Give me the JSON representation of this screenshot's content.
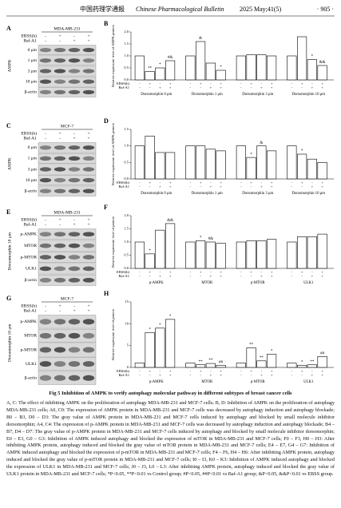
{
  "header": {
    "journal_cn": "中国药理学通报",
    "journal_en": "Chinese Pharmacological Bulletin",
    "issue": "2025 May;41(5)",
    "page": "· 905 ·"
  },
  "blots": [
    {
      "letter": "A",
      "cell_line": "MDA-MB-231",
      "conditions": [
        {
          "label": "EBSS(h)",
          "signs": [
            "-",
            "+",
            "-",
            "+"
          ]
        },
        {
          "label": "Baf-A1",
          "signs": [
            "-",
            "-",
            "+",
            "+"
          ]
        }
      ],
      "side_label": "AMPK",
      "bands": [
        "0 μm",
        "1 μm",
        "3 μm",
        "10 μm",
        "β-actin"
      ]
    },
    {
      "letter": "C",
      "cell_line": "MCF-7",
      "conditions": [
        {
          "label": "EBSS(h)",
          "signs": [
            "-",
            "+",
            "-",
            "+"
          ]
        },
        {
          "label": "Baf-A1",
          "signs": [
            "-",
            "-",
            "+",
            "+"
          ]
        }
      ],
      "side_label": "AMPK",
      "bands": [
        "0 μm",
        "1 μm",
        "3 μm",
        "10 μm",
        "β-actin"
      ]
    },
    {
      "letter": "E",
      "cell_line": "MDA-MB-231",
      "conditions": [
        {
          "label": "EBSS(h)",
          "signs": [
            "-",
            "+",
            "-",
            "+"
          ]
        },
        {
          "label": "Baf-A1",
          "signs": [
            "-",
            "-",
            "+",
            "+"
          ]
        }
      ],
      "side_label": "Dorsomorphin 10 μm",
      "bands": [
        "p-AMPK",
        "MTOR",
        "p-MTOR",
        "ULK1",
        "β-actin"
      ]
    },
    {
      "letter": "G",
      "cell_line": "MCF-7",
      "conditions": [
        {
          "label": "EBSS(h)",
          "signs": [
            "-",
            "+",
            "-",
            "+"
          ]
        },
        {
          "label": "Baf-A1",
          "signs": [
            "-",
            "-",
            "+",
            "+"
          ]
        }
      ],
      "side_label": "Dorsomorphin 10 μm",
      "bands": [
        "p-AMPK",
        "MTOR",
        "p-MTOR",
        "ULK1",
        "β-actin"
      ]
    }
  ],
  "charts": [
    {
      "type": "bar",
      "letter": "B",
      "ylabel": "Relative expression level of AMPK protein",
      "ylim": [
        0,
        2
      ],
      "yticks": [
        {
          "value": 0,
          "label": "0.0"
        },
        {
          "value": 0.5,
          "label": "0.5"
        },
        {
          "value": 1,
          "label": "1.0"
        },
        {
          "value": 1.5,
          "label": "1.5"
        },
        {
          "value": 2,
          "label": "2.0"
        }
      ],
      "groups": [
        {
          "name": "Dorsomorphin 0 μm",
          "values": [
            1.0,
            0.35,
            0.5,
            0.8
          ],
          "sig": [
            null,
            "**",
            "*",
            "#&"
          ]
        },
        {
          "name": "Dorsomorphin 1 μm",
          "values": [
            1.0,
            1.6,
            0.7,
            0.4
          ],
          "sig": [
            null,
            "&",
            null,
            "*"
          ]
        },
        {
          "name": "Dorsomorphin 3 μm",
          "values": [
            1.0,
            1.05,
            1.05,
            1.0
          ],
          "sig": [
            null,
            null,
            null,
            null
          ]
        },
        {
          "name": "Dorsomorphin 10 μm",
          "values": [
            1.0,
            1.8,
            0.85,
            0.6
          ],
          "sig": [
            null,
            null,
            "*",
            "&&"
          ]
        }
      ],
      "conditions": [
        {
          "label": "EBSS(h)",
          "signs": [
            "-",
            "+",
            "-",
            "+",
            "-",
            "+",
            "-",
            "+",
            "-",
            "+",
            "-",
            "+",
            "-",
            "+",
            "-",
            "+"
          ]
        },
        {
          "label": "Baf-A1",
          "signs": [
            "-",
            "-",
            "+",
            "+",
            "-",
            "-",
            "+",
            "+",
            "-",
            "-",
            "+",
            "+",
            "-",
            "-",
            "+",
            "+"
          ]
        }
      ]
    },
    {
      "type": "bar",
      "letter": "D",
      "ylabel": "Relative expression level of AMPK protein",
      "ylim": [
        0,
        1.5
      ],
      "yticks": [
        {
          "value": 0,
          "label": "0.0"
        },
        {
          "value": 0.5,
          "label": "0.5"
        },
        {
          "value": 1,
          "label": "1.0"
        },
        {
          "value": 1.5,
          "label": "1.5"
        }
      ],
      "groups": [
        {
          "name": "Dorsomorphin 0 μm",
          "values": [
            1.0,
            1.3,
            0.8,
            0.8
          ],
          "sig": [
            null,
            null,
            null,
            null
          ]
        },
        {
          "name": "Dorsomorphin 1 μm",
          "values": [
            1.0,
            1.0,
            0.9,
            0.85
          ],
          "sig": [
            null,
            null,
            null,
            null
          ]
        },
        {
          "name": "Dorsomorphin 3 μm",
          "values": [
            1.0,
            0.65,
            1.0,
            0.85
          ],
          "sig": [
            null,
            "*",
            "&",
            null
          ]
        },
        {
          "name": "Dorsomorphin 10 μm",
          "values": [
            1.0,
            0.75,
            0.6,
            0.5
          ],
          "sig": [
            null,
            "*",
            null,
            null
          ]
        }
      ],
      "conditions": [
        {
          "label": "EBSS(h)",
          "signs": [
            "-",
            "+",
            "-",
            "+",
            "-",
            "+",
            "-",
            "+",
            "-",
            "+",
            "-",
            "+",
            "-",
            "+",
            "-",
            "+"
          ]
        },
        {
          "label": "Baf-A1",
          "signs": [
            "-",
            "-",
            "+",
            "+",
            "-",
            "-",
            "+",
            "+",
            "-",
            "-",
            "+",
            "+",
            "-",
            "-",
            "+",
            "+"
          ]
        }
      ]
    },
    {
      "type": "bar",
      "letter": "F",
      "ylabel": "Relative expression level of protein",
      "ylim": [
        0,
        2
      ],
      "yticks": [
        {
          "value": 0,
          "label": "0.0"
        },
        {
          "value": 0.5,
          "label": "0.5"
        },
        {
          "value": 1,
          "label": "1.0"
        },
        {
          "value": 1.5,
          "label": "1.5"
        },
        {
          "value": 2,
          "label": "2.0"
        }
      ],
      "groups": [
        {
          "name": "p-AMPK",
          "values": [
            1.0,
            0.55,
            1.45,
            1.7
          ],
          "sig": [
            null,
            "*",
            null,
            "&&"
          ]
        },
        {
          "name": "MTOR",
          "values": [
            1.0,
            1.05,
            1.0,
            0.95
          ],
          "sig": [
            null,
            "*",
            "#&",
            null
          ]
        },
        {
          "name": "p-MTOR",
          "values": [
            1.0,
            1.05,
            1.05,
            1.1
          ],
          "sig": [
            null,
            null,
            null,
            null
          ]
        },
        {
          "name": "ULK1",
          "values": [
            1.0,
            1.2,
            1.2,
            1.3
          ],
          "sig": [
            null,
            null,
            null,
            null
          ]
        }
      ],
      "conditions": [
        {
          "label": "EBSS(h)",
          "signs": [
            "-",
            "+",
            "-",
            "+",
            "-",
            "+",
            "-",
            "+",
            "-",
            "+",
            "-",
            "+",
            "-",
            "+",
            "-",
            "+"
          ]
        },
        {
          "label": "Baf-A1",
          "signs": [
            "-",
            "-",
            "+",
            "+",
            "-",
            "-",
            "+",
            "+",
            "-",
            "-",
            "+",
            "+",
            "-",
            "-",
            "+",
            "+"
          ]
        }
      ]
    },
    {
      "type": "bar",
      "letter": "H",
      "ylabel": "Relative expression level of protein",
      "ylim": [
        0,
        15
      ],
      "yticks": [
        0,
        5,
        10,
        15
      ],
      "groups": [
        {
          "name": "p-AMPK",
          "values": [
            1,
            8,
            9,
            11
          ],
          "sig": [
            null,
            "*",
            "*",
            "*"
          ]
        },
        {
          "name": "MTOR",
          "values": [
            1,
            0.6,
            0.9,
            0.5
          ],
          "sig": [
            null,
            "**",
            "**",
            "##"
          ]
        },
        {
          "name": "p-MTOR",
          "values": [
            1,
            4.5,
            1.5,
            3
          ],
          "sig": [
            null,
            "**",
            "**",
            "*"
          ]
        },
        {
          "name": "ULK1",
          "values": [
            1,
            0.5,
            0.6,
            2.5
          ],
          "sig": [
            null,
            "*",
            "**",
            "##"
          ]
        }
      ],
      "conditions": [
        {
          "label": "EBSS(h)",
          "signs": [
            "-",
            "+",
            "-",
            "+",
            "-",
            "+",
            "-",
            "+",
            "-",
            "+",
            "-",
            "+",
            "-",
            "+",
            "-",
            "+"
          ]
        },
        {
          "label": "Baf-A1",
          "signs": [
            "-",
            "-",
            "+",
            "+",
            "-",
            "-",
            "+",
            "+",
            "-",
            "-",
            "+",
            "+",
            "-",
            "-",
            "+",
            "+"
          ]
        }
      ]
    }
  ],
  "caption": {
    "title": "Fig 5   Inhibition of AMPK to verify autophagy molecular pathway in different subtypes of breast cancer cells",
    "body": "A, C: The effect of inhibiting AMPK on the proliferation of autophagy MDA-MB-231 and MCF-7 cells; B, D: Inhibition of AMPK on the proliferation of autophagy MDA-MB-231 cells; A0, C0: The expression of AMPK protein in MDA-MB-231 and MCF-7 cells was decreased by autophagy induction and autophagy blockade; B0 – B3, D0 – D3: The gray value of AMPK protein in MDA-MB-231 and MCF-7 cells induced by autophagy and blocked by small molecule inhibitor dorsomorphin; A4, C4: The expression of p-AMPK protein in MDA-MB-231 and MCF-7 cells was decreased by autophagy induction and autophagy blockade; B4 – B7, D4 – D7: The gray value of p-AMPK protein in MDA-MB-231 and MCF-7 cells induced by autophagy and blocked by small molecule inhibitor dorsomorphin; E0 – E3, G0 – G3: Inhibition of AMPK induced autophagy and blocked the expression of mTOR in MDA-MB-231 and MCF-7 cells; F0 – F3, H0 – H3: After inhibiting AMPK protein, autophagy induced and blocked the gray value of mTOR protein in MDA-MB-231 and MCF-7 cells; E4 – E7, G4 – G7: Inhibition of AMPK induced autophagy and blocked the expression of p-mTOR in MDA-MB-231 and MCF-7 cells; F4 – F6, H4 – H6: After inhibiting AMPK protein, autophagy induced and blocked the gray value of p-mTOR protein in MDA-MB-231 and MCF-7 cells; I0 – I3, K0 – K3: Inhibition of AMPK induced autophagy and blocked the expression of ULK1 in MDA-MB-231 and MCF-7 cells; J0 – J3, L0 – L3: After inhibiting AMPK protein, autophagy induced and blocked the gray value of ULK1 protein in MDA-MB-231 and MCF-7 cells; *P<0.05, **P<0.01 vs Control group; #P<0.05, ##P<0.01 vs Baf-A1 group; &P<0.05, &&P<0.01 vs EBSS group."
  }
}
